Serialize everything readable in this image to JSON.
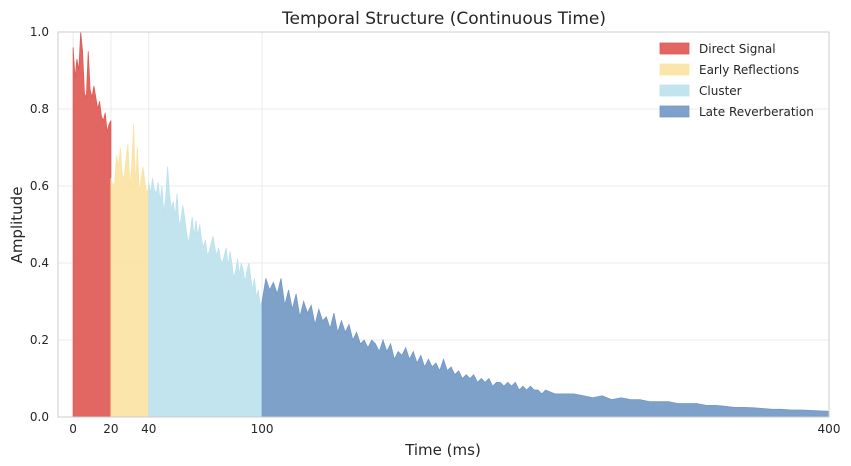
{
  "chart_data": {
    "type": "area",
    "title": "Temporal Structure (Continuous Time)",
    "xlabel": "Time (ms)",
    "ylabel": "Amplitude",
    "xlim": [
      -8,
      400
    ],
    "ylim": [
      0,
      1.0
    ],
    "x_ticks": [
      0,
      20,
      40,
      100,
      400
    ],
    "y_ticks": [
      0.0,
      0.2,
      0.4,
      0.6,
      0.8,
      1.0
    ],
    "y_tick_labels": [
      "0.0",
      "0.2",
      "0.4",
      "0.6",
      "0.8",
      "1.0"
    ],
    "x_tick_labels": [
      "0",
      "20",
      "40",
      "100",
      "400"
    ],
    "grid": true,
    "legend_position": "top-right",
    "series": [
      {
        "name": "Direct Signal",
        "color": "#e05a55",
        "x_range": [
          0,
          20
        ],
        "points": [
          [
            0,
            0.96
          ],
          [
            1,
            0.88
          ],
          [
            2,
            0.93
          ],
          [
            3,
            0.9
          ],
          [
            4,
            1.0
          ],
          [
            5,
            0.95
          ],
          [
            6,
            0.84
          ],
          [
            7,
            0.83
          ],
          [
            8,
            0.95
          ],
          [
            9,
            0.85
          ],
          [
            10,
            0.83
          ],
          [
            11,
            0.86
          ],
          [
            12,
            0.83
          ],
          [
            13,
            0.8
          ],
          [
            14,
            0.82
          ],
          [
            15,
            0.78
          ],
          [
            16,
            0.77
          ],
          [
            17,
            0.79
          ],
          [
            18,
            0.74
          ],
          [
            19,
            0.76
          ],
          [
            20,
            0.77
          ]
        ]
      },
      {
        "name": "Early Reflections",
        "color": "#fbe3a4",
        "x_range": [
          20,
          40
        ],
        "points": [
          [
            20,
            0.62
          ],
          [
            21,
            0.6
          ],
          [
            22,
            0.61
          ],
          [
            23,
            0.68
          ],
          [
            24,
            0.65
          ],
          [
            25,
            0.7
          ],
          [
            26,
            0.63
          ],
          [
            27,
            0.62
          ],
          [
            28,
            0.67
          ],
          [
            29,
            0.71
          ],
          [
            30,
            0.6
          ],
          [
            31,
            0.65
          ],
          [
            32,
            0.76
          ],
          [
            33,
            0.6
          ],
          [
            34,
            0.7
          ],
          [
            35,
            0.58
          ],
          [
            36,
            0.62
          ],
          [
            37,
            0.65
          ],
          [
            38,
            0.61
          ],
          [
            39,
            0.58
          ],
          [
            40,
            0.6
          ]
        ]
      },
      {
        "name": "Cluster",
        "color": "#bde2ed",
        "x_range": [
          40,
          100
        ],
        "points": [
          [
            40,
            0.61
          ],
          [
            41,
            0.58
          ],
          [
            42,
            0.62
          ],
          [
            43,
            0.59
          ],
          [
            44,
            0.58
          ],
          [
            45,
            0.61
          ],
          [
            46,
            0.56
          ],
          [
            47,
            0.6
          ],
          [
            48,
            0.53
          ],
          [
            49,
            0.57
          ],
          [
            50,
            0.65
          ],
          [
            51,
            0.58
          ],
          [
            52,
            0.54
          ],
          [
            53,
            0.56
          ],
          [
            54,
            0.52
          ],
          [
            55,
            0.58
          ],
          [
            56,
            0.5
          ],
          [
            57,
            0.51
          ],
          [
            58,
            0.55
          ],
          [
            59,
            0.52
          ],
          [
            60,
            0.48
          ],
          [
            61,
            0.45
          ],
          [
            62,
            0.48
          ],
          [
            63,
            0.52
          ],
          [
            64,
            0.47
          ],
          [
            65,
            0.51
          ],
          [
            66,
            0.47
          ],
          [
            67,
            0.5
          ],
          [
            68,
            0.46
          ],
          [
            69,
            0.44
          ],
          [
            70,
            0.46
          ],
          [
            71,
            0.42
          ],
          [
            72,
            0.43
          ],
          [
            73,
            0.45
          ],
          [
            74,
            0.47
          ],
          [
            75,
            0.44
          ],
          [
            76,
            0.42
          ],
          [
            77,
            0.44
          ],
          [
            78,
            0.41
          ],
          [
            79,
            0.4
          ],
          [
            80,
            0.42
          ],
          [
            81,
            0.44
          ],
          [
            82,
            0.39
          ],
          [
            83,
            0.43
          ],
          [
            84,
            0.4
          ],
          [
            85,
            0.36
          ],
          [
            86,
            0.38
          ],
          [
            87,
            0.41
          ],
          [
            88,
            0.37
          ],
          [
            89,
            0.4
          ],
          [
            90,
            0.38
          ],
          [
            91,
            0.35
          ],
          [
            92,
            0.38
          ],
          [
            93,
            0.4
          ],
          [
            94,
            0.36
          ],
          [
            95,
            0.33
          ],
          [
            96,
            0.36
          ],
          [
            97,
            0.31
          ],
          [
            98,
            0.33
          ],
          [
            99,
            0.29
          ],
          [
            100,
            0.3
          ]
        ]
      },
      {
        "name": "Late Reverberation",
        "color": "#7399c6",
        "x_range": [
          100,
          400
        ],
        "points": [
          [
            100,
            0.3
          ],
          [
            102,
            0.36
          ],
          [
            104,
            0.33
          ],
          [
            106,
            0.35
          ],
          [
            108,
            0.32
          ],
          [
            110,
            0.36
          ],
          [
            112,
            0.29
          ],
          [
            114,
            0.33
          ],
          [
            116,
            0.28
          ],
          [
            118,
            0.32
          ],
          [
            120,
            0.26
          ],
          [
            122,
            0.3
          ],
          [
            124,
            0.27
          ],
          [
            126,
            0.29
          ],
          [
            128,
            0.24
          ],
          [
            130,
            0.28
          ],
          [
            132,
            0.25
          ],
          [
            134,
            0.26
          ],
          [
            136,
            0.23
          ],
          [
            138,
            0.27
          ],
          [
            140,
            0.22
          ],
          [
            142,
            0.25
          ],
          [
            144,
            0.22
          ],
          [
            146,
            0.24
          ],
          [
            148,
            0.2
          ],
          [
            150,
            0.22
          ],
          [
            152,
            0.19
          ],
          [
            154,
            0.2
          ],
          [
            156,
            0.18
          ],
          [
            158,
            0.2
          ],
          [
            160,
            0.19
          ],
          [
            162,
            0.17
          ],
          [
            164,
            0.2
          ],
          [
            166,
            0.17
          ],
          [
            168,
            0.19
          ],
          [
            170,
            0.15
          ],
          [
            172,
            0.17
          ],
          [
            174,
            0.16
          ],
          [
            176,
            0.18
          ],
          [
            178,
            0.15
          ],
          [
            180,
            0.17
          ],
          [
            182,
            0.14
          ],
          [
            184,
            0.16
          ],
          [
            186,
            0.13
          ],
          [
            188,
            0.15
          ],
          [
            190,
            0.13
          ],
          [
            192,
            0.14
          ],
          [
            194,
            0.12
          ],
          [
            196,
            0.15
          ],
          [
            198,
            0.12
          ],
          [
            200,
            0.13
          ],
          [
            202,
            0.11
          ],
          [
            204,
            0.12
          ],
          [
            206,
            0.1
          ],
          [
            208,
            0.11
          ],
          [
            210,
            0.1
          ],
          [
            212,
            0.11
          ],
          [
            214,
            0.09
          ],
          [
            216,
            0.1
          ],
          [
            218,
            0.09
          ],
          [
            220,
            0.1
          ],
          [
            222,
            0.08
          ],
          [
            224,
            0.09
          ],
          [
            226,
            0.09
          ],
          [
            228,
            0.08
          ],
          [
            230,
            0.09
          ],
          [
            232,
            0.08
          ],
          [
            234,
            0.09
          ],
          [
            236,
            0.07
          ],
          [
            238,
            0.08
          ],
          [
            240,
            0.07
          ],
          [
            242,
            0.08
          ],
          [
            244,
            0.07
          ],
          [
            246,
            0.07
          ],
          [
            248,
            0.06
          ],
          [
            250,
            0.07
          ],
          [
            255,
            0.06
          ],
          [
            260,
            0.06
          ],
          [
            265,
            0.06
          ],
          [
            270,
            0.055
          ],
          [
            275,
            0.05
          ],
          [
            280,
            0.055
          ],
          [
            285,
            0.045
          ],
          [
            290,
            0.05
          ],
          [
            295,
            0.045
          ],
          [
            300,
            0.045
          ],
          [
            305,
            0.04
          ],
          [
            310,
            0.04
          ],
          [
            315,
            0.04
          ],
          [
            320,
            0.035
          ],
          [
            325,
            0.035
          ],
          [
            330,
            0.035
          ],
          [
            335,
            0.03
          ],
          [
            340,
            0.03
          ],
          [
            345,
            0.028
          ],
          [
            350,
            0.025
          ],
          [
            355,
            0.025
          ],
          [
            360,
            0.024
          ],
          [
            365,
            0.022
          ],
          [
            370,
            0.02
          ],
          [
            375,
            0.02
          ],
          [
            380,
            0.018
          ],
          [
            385,
            0.018
          ],
          [
            390,
            0.017
          ],
          [
            395,
            0.016
          ],
          [
            400,
            0.015
          ]
        ]
      }
    ]
  }
}
